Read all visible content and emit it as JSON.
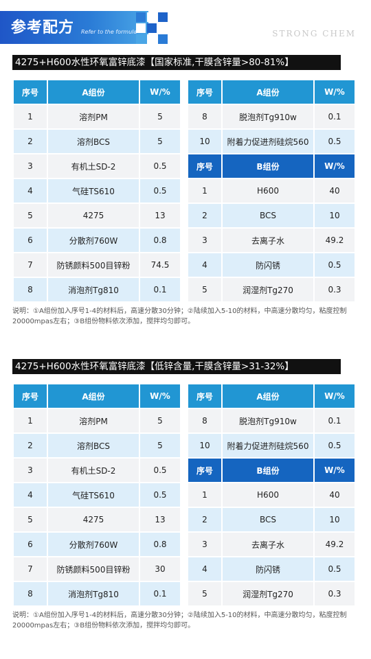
{
  "header": {
    "title": "参考配方",
    "subtitle": "Refer to the formula",
    "brand": "STRONG CHEM"
  },
  "column_headers": {
    "no": "序号",
    "a_group": "A组份",
    "b_group": "B组份",
    "wt": "W/%"
  },
  "sections": [
    {
      "title": "4275+H600水性环氧富锌底漆【国家标准,干膜含锌量>80-81%】",
      "left_rows": [
        {
          "no": "1",
          "name": "溶剂PM",
          "wt": "5"
        },
        {
          "no": "2",
          "name": "溶剂BCS",
          "wt": "5"
        },
        {
          "no": "3",
          "name": "有机土SD-2",
          "wt": "0.5"
        },
        {
          "no": "4",
          "name": "气硅TS610",
          "wt": "0.5"
        },
        {
          "no": "5",
          "name": "4275",
          "wt": "13"
        },
        {
          "no": "6",
          "name": "分散剂760W",
          "wt": "0.8"
        },
        {
          "no": "7",
          "name": "防锈颜料500目锌粉",
          "wt": "74.5"
        },
        {
          "no": "8",
          "name": "消泡剂Tg810",
          "wt": "0.1"
        }
      ],
      "right_a_rows": [
        {
          "no": "8",
          "name": "脱泡剂Tg910w",
          "wt": "0.1"
        },
        {
          "no": "10",
          "name": "附着力促进剂硅烷560",
          "wt": "0.5"
        }
      ],
      "right_b_rows": [
        {
          "no": "1",
          "name": "H600",
          "wt": "40"
        },
        {
          "no": "2",
          "name": "BCS",
          "wt": "10"
        },
        {
          "no": "3",
          "name": "去离子水",
          "wt": "49.2"
        },
        {
          "no": "4",
          "name": "防闪锈",
          "wt": "0.5"
        },
        {
          "no": "5",
          "name": "润湿剂Tg270",
          "wt": "0.3"
        }
      ],
      "note": "说明：①A组份加入序号1-4的材料后，高速分散30分钟；②陆续加入5-10的材料，中高速分散均匀，粘度控制20000mpas左右；③B组份物料依次添加，搅拌均匀即可。"
    },
    {
      "title": "4275+H600水性环氧富锌底漆【低锌含量,干膜含锌量>31-32%】",
      "left_rows": [
        {
          "no": "1",
          "name": "溶剂PM",
          "wt": "5"
        },
        {
          "no": "2",
          "name": "溶剂BCS",
          "wt": "5"
        },
        {
          "no": "3",
          "name": "有机土SD-2",
          "wt": "0.5"
        },
        {
          "no": "4",
          "name": "气硅TS610",
          "wt": "0.5"
        },
        {
          "no": "5",
          "name": "4275",
          "wt": "13"
        },
        {
          "no": "6",
          "name": "分散剂760W",
          "wt": "0.8"
        },
        {
          "no": "7",
          "name": "防锈颜料500目锌粉",
          "wt": "30"
        },
        {
          "no": "8",
          "name": "消泡剂Tg810",
          "wt": "0.1"
        }
      ],
      "right_a_rows": [
        {
          "no": "8",
          "name": "脱泡剂Tg910w",
          "wt": "0.1"
        },
        {
          "no": "10",
          "name": "附着力促进剂硅烷560",
          "wt": "0.5"
        }
      ],
      "right_b_rows": [
        {
          "no": "1",
          "name": "H600",
          "wt": "40"
        },
        {
          "no": "2",
          "name": "BCS",
          "wt": "10"
        },
        {
          "no": "3",
          "name": "去离子水",
          "wt": "49.2"
        },
        {
          "no": "4",
          "name": "防闪锈",
          "wt": "0.5"
        },
        {
          "no": "5",
          "name": "润湿剂Tg270",
          "wt": "0.3"
        }
      ],
      "note": "说明：①A组份加入序号1-4的材料后，高速分散30分钟；②陆续加入5-10的材料，中高速分散均匀，粘度控制20000mpas左右；③B组份物料依次添加，搅拌均匀即可。"
    }
  ]
}
